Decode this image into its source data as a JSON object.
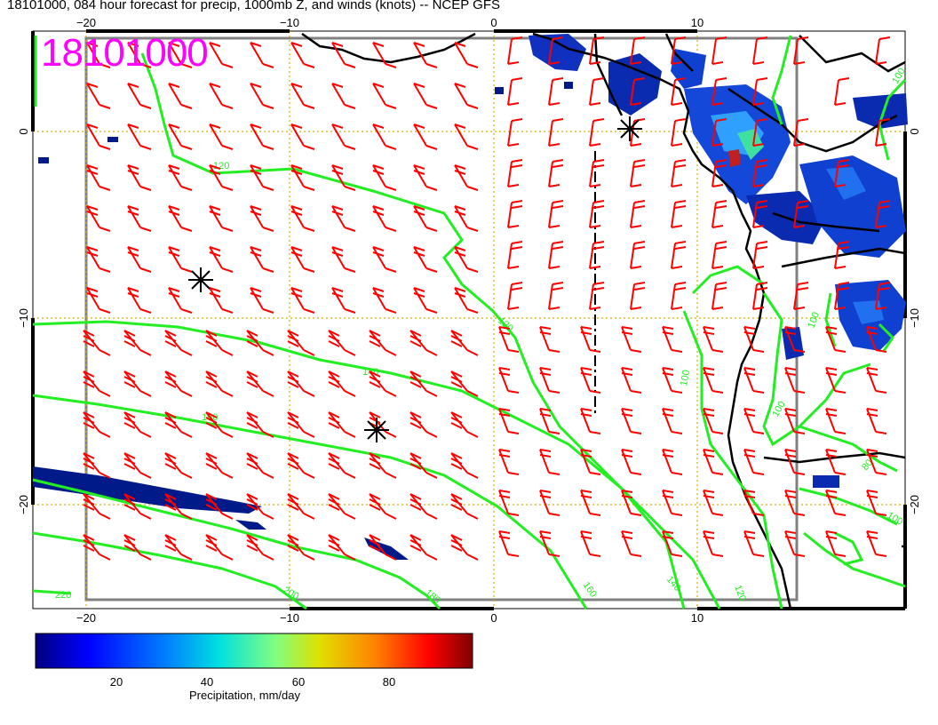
{
  "title": "18101000, 084 hour forecast for precip, 1000mb Z, and winds (knots) -- NCEP GFS",
  "stamp": "18101000",
  "map": {
    "lon_ticks": [
      "−20",
      "−10",
      "0",
      "10"
    ],
    "lat_ticks": [
      "0",
      "−10",
      "−20"
    ],
    "contour_labels": [
      "120",
      "120",
      "140",
      "160",
      "180",
      "200",
      "220",
      "140",
      "160",
      "120",
      "100",
      "100",
      "100",
      "100",
      "100",
      "80"
    ]
  },
  "colorbar": {
    "label": "Precipitation, mm/day",
    "ticks": [
      "20",
      "40",
      "60",
      "80"
    ],
    "colors": [
      "#00007f",
      "#0000ff",
      "#0080ff",
      "#00ffff",
      "#80ff80",
      "#ffff00",
      "#ff8000",
      "#ff0000",
      "#7f0000"
    ]
  },
  "colors": {
    "contour": "#22ee22",
    "barb": "#ff0000",
    "stamp": "#ff00ff",
    "grid": "#d4b000"
  }
}
